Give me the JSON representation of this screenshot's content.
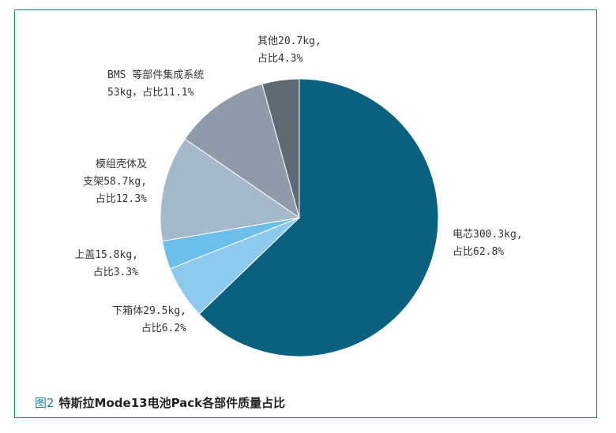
{
  "caption": {
    "figure_label": "图2",
    "text": "特斯拉Mode13电池Pack各部件质量占比"
  },
  "chart_data": {
    "type": "pie",
    "title": "",
    "slices": [
      {
        "name": "电芯",
        "weight_kg": 300.3,
        "percent": 62.8,
        "color": "#09607f",
        "label_lines": [
          "电芯300.3kg,",
          "占比62.8%"
        ]
      },
      {
        "name": "下箱体",
        "weight_kg": 29.5,
        "percent": 6.2,
        "color": "#8ec9ee",
        "label_lines": [
          "下箱体29.5kg,",
          "占比6.2%"
        ]
      },
      {
        "name": "上盖",
        "weight_kg": 15.8,
        "percent": 3.3,
        "color": "#6cbfe9",
        "label_lines": [
          "上盖15.8kg,",
          "占比3.3%"
        ]
      },
      {
        "name": "模组壳体及支架",
        "weight_kg": 58.7,
        "percent": 12.3,
        "color": "#a6b9ca",
        "label_lines": [
          "模组壳体及",
          "支架58.7kg,",
          "占比12.3%"
        ]
      },
      {
        "name": "BMS 等部件集成系统",
        "weight_kg": 53,
        "percent": 11.1,
        "color": "#8d9ca8",
        "label_lines": [
          "BMS 等部件集成系统",
          "53kg，占比11.1%"
        ]
      },
      {
        "name": "其他",
        "weight_kg": 20.7,
        "percent": 4.3,
        "color": "#5e6971",
        "label_lines": [
          "其他20.7kg,",
          "占比4.3%"
        ]
      }
    ]
  }
}
